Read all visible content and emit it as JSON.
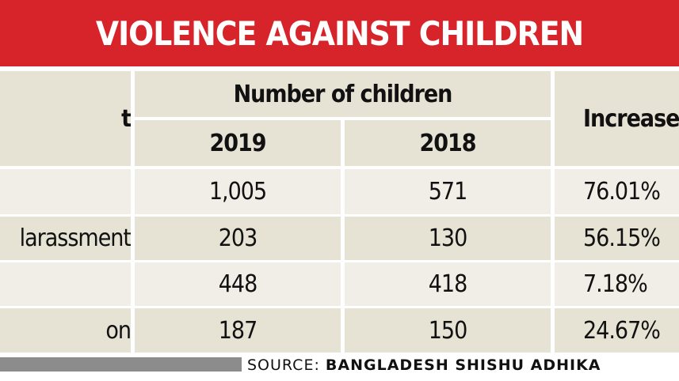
{
  "header": {
    "title": "VIOLENCE AGAINST CHILDREN"
  },
  "table": {
    "incident_header": "t",
    "group_header": "Number of children",
    "year_headers": [
      "2019",
      "2018"
    ],
    "increase_header": "Increase",
    "rows": [
      {
        "cells": [
          "1,005",
          "571",
          "76.01%"
        ]
      },
      {
        "label": "larassment",
        "cells": [
          "203",
          "130",
          "56.15%"
        ]
      },
      {
        "cells": [
          "448",
          "418",
          "7.18%"
        ]
      },
      {
        "label": "on",
        "cells": [
          "187",
          "150",
          "24.67%"
        ]
      }
    ]
  },
  "source": {
    "prefix": "SOURCE:",
    "name": "BANGLADESH SHISHU ADHIKA"
  }
}
